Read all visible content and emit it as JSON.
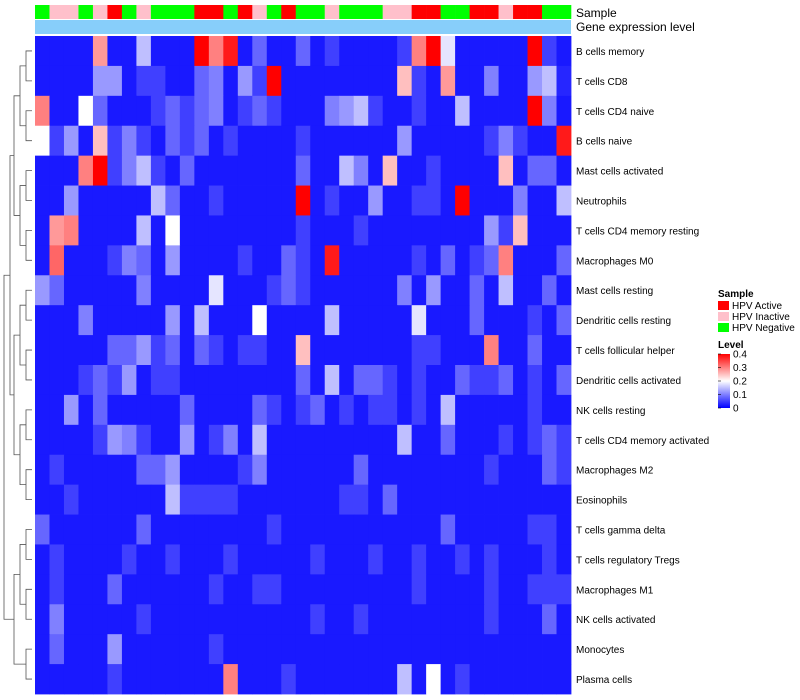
{
  "chart_data": {
    "type": "heatmap",
    "annotation_rows": [
      "Sample",
      "Gene expression level"
    ],
    "rows": [
      "B cells memory",
      "T cells CD8",
      "T cells CD4 naive",
      "B cells naive",
      "Mast cells activated",
      "Neutrophils",
      "T cells CD4 memory resting",
      "Macrophages M0",
      "Mast cells resting",
      "Dendritic cells resting",
      "T cells follicular helper",
      "Dendritic cells activated",
      "NK cells resting",
      "T cells CD4 memory activated",
      "Macrophages M2",
      "Eosinophils",
      "T cells gamma delta",
      "T cells regulatory  Tregs",
      "Macrophages M1",
      "NK cells activated",
      "Monocytes",
      "Plasma cells"
    ],
    "sample_groups": [
      "HPV Negative",
      "HPV Inactive",
      "HPV Inactive",
      "HPV Negative",
      "HPV Inactive",
      "HPV Active",
      "HPV Negative",
      "HPV Inactive",
      "HPV Negative",
      "HPV Negative",
      "HPV Negative",
      "HPV Active",
      "HPV Active",
      "HPV Negative",
      "HPV Active",
      "HPV Inactive",
      "HPV Negative",
      "HPV Active",
      "HPV Negative",
      "HPV Negative",
      "HPV Inactive",
      "HPV Negative",
      "HPV Negative",
      "HPV Negative",
      "HPV Inactive",
      "HPV Inactive",
      "HPV Active",
      "HPV Active",
      "HPV Negative",
      "HPV Negative",
      "HPV Active",
      "HPV Active",
      "HPV Inactive",
      "HPV Active",
      "HPV Active",
      "HPV Negative",
      "HPV Negative"
    ],
    "values": [
      [
        0.02,
        0.02,
        0.02,
        0.02,
        0.28,
        0.02,
        0.02,
        0.15,
        0.02,
        0.02,
        0.02,
        0.4,
        0.3,
        0.38,
        0.02,
        0.08,
        0.02,
        0.02,
        0.08,
        0.02,
        0.05,
        0.02,
        0.02,
        0.02,
        0.02,
        0.05,
        0.3,
        0.4,
        0.18,
        0.02,
        0.02,
        0.02,
        0.02,
        0.02,
        0.4,
        0.05,
        0.02
      ],
      [
        0.02,
        0.02,
        0.02,
        0.02,
        0.12,
        0.12,
        0.02,
        0.05,
        0.05,
        0.02,
        0.02,
        0.08,
        0.1,
        0.02,
        0.12,
        0.05,
        0.4,
        0.02,
        0.02,
        0.02,
        0.02,
        0.02,
        0.02,
        0.02,
        0.02,
        0.25,
        0.05,
        0.02,
        0.28,
        0.02,
        0.02,
        0.1,
        0.02,
        0.02,
        0.12,
        0.15,
        0.03
      ],
      [
        0.3,
        0.02,
        0.02,
        0.2,
        0.08,
        0.02,
        0.02,
        0.02,
        0.05,
        0.08,
        0.05,
        0.08,
        0.1,
        0.02,
        0.05,
        0.08,
        0.05,
        0.02,
        0.02,
        0.02,
        0.1,
        0.12,
        0.15,
        0.05,
        0.02,
        0.02,
        0.05,
        0.02,
        0.02,
        0.15,
        0.02,
        0.02,
        0.02,
        0.02,
        0.4,
        0.1,
        0.02
      ],
      [
        0.2,
        0.05,
        0.12,
        0.02,
        0.25,
        0.05,
        0.1,
        0.05,
        0.02,
        0.08,
        0.05,
        0.08,
        0.02,
        0.05,
        0.02,
        0.02,
        0.02,
        0.02,
        0.05,
        0.02,
        0.02,
        0.02,
        0.02,
        0.02,
        0.02,
        0.12,
        0.02,
        0.02,
        0.02,
        0.02,
        0.02,
        0.05,
        0.1,
        0.05,
        0.02,
        0.02,
        0.38
      ],
      [
        0.02,
        0.02,
        0.02,
        0.3,
        0.4,
        0.05,
        0.1,
        0.15,
        0.05,
        0.02,
        0.08,
        0.02,
        0.02,
        0.02,
        0.02,
        0.02,
        0.02,
        0.02,
        0.08,
        0.02,
        0.02,
        0.15,
        0.1,
        0.02,
        0.25,
        0.02,
        0.02,
        0.05,
        0.02,
        0.02,
        0.02,
        0.02,
        0.25,
        0.02,
        0.08,
        0.08,
        0.02
      ],
      [
        0.02,
        0.02,
        0.12,
        0.02,
        0.02,
        0.02,
        0.02,
        0.02,
        0.15,
        0.08,
        0.02,
        0.02,
        0.05,
        0.02,
        0.02,
        0.02,
        0.02,
        0.02,
        0.4,
        0.02,
        0.05,
        0.02,
        0.02,
        0.12,
        0.02,
        0.02,
        0.05,
        0.05,
        0.02,
        0.4,
        0.02,
        0.02,
        0.02,
        0.1,
        0.02,
        0.02,
        0.15
      ],
      [
        0.02,
        0.28,
        0.3,
        0.02,
        0.02,
        0.02,
        0.02,
        0.15,
        0.02,
        0.2,
        0.02,
        0.02,
        0.02,
        0.02,
        0.02,
        0.02,
        0.02,
        0.02,
        0.05,
        0.02,
        0.02,
        0.02,
        0.05,
        0.02,
        0.02,
        0.02,
        0.02,
        0.02,
        0.02,
        0.02,
        0.02,
        0.12,
        0.05,
        0.25,
        0.02,
        0.02,
        0.02
      ],
      [
        0.02,
        0.32,
        0.02,
        0.02,
        0.02,
        0.05,
        0.1,
        0.08,
        0.02,
        0.12,
        0.02,
        0.02,
        0.02,
        0.02,
        0.05,
        0.02,
        0.02,
        0.08,
        0.05,
        0.02,
        0.38,
        0.02,
        0.02,
        0.02,
        0.02,
        0.02,
        0.05,
        0.02,
        0.08,
        0.02,
        0.05,
        0.08,
        0.3,
        0.02,
        0.02,
        0.02,
        0.08
      ],
      [
        0.12,
        0.08,
        0.02,
        0.02,
        0.02,
        0.02,
        0.02,
        0.1,
        0.02,
        0.02,
        0.02,
        0.02,
        0.18,
        0.02,
        0.02,
        0.02,
        0.05,
        0.08,
        0.05,
        0.02,
        0.02,
        0.02,
        0.02,
        0.02,
        0.02,
        0.1,
        0.02,
        0.12,
        0.02,
        0.02,
        0.08,
        0.02,
        0.15,
        0.02,
        0.02,
        0.08,
        0.02
      ],
      [
        0.02,
        0.02,
        0.02,
        0.1,
        0.02,
        0.02,
        0.02,
        0.02,
        0.02,
        0.12,
        0.02,
        0.15,
        0.02,
        0.02,
        0.02,
        0.2,
        0.02,
        0.02,
        0.02,
        0.02,
        0.15,
        0.02,
        0.02,
        0.02,
        0.02,
        0.02,
        0.18,
        0.02,
        0.02,
        0.02,
        0.08,
        0.02,
        0.02,
        0.02,
        0.05,
        0.02,
        0.08
      ],
      [
        0.02,
        0.02,
        0.02,
        0.02,
        0.02,
        0.08,
        0.08,
        0.12,
        0.05,
        0.08,
        0.02,
        0.08,
        0.05,
        0.02,
        0.05,
        0.05,
        0.02,
        0.02,
        0.25,
        0.02,
        0.02,
        0.02,
        0.02,
        0.02,
        0.02,
        0.02,
        0.05,
        0.05,
        0.02,
        0.02,
        0.02,
        0.3,
        0.02,
        0.02,
        0.08,
        0.02,
        0.02
      ],
      [
        0.02,
        0.02,
        0.02,
        0.05,
        0.08,
        0.05,
        0.12,
        0.02,
        0.05,
        0.05,
        0.02,
        0.02,
        0.02,
        0.02,
        0.02,
        0.02,
        0.02,
        0.02,
        0.08,
        0.02,
        0.15,
        0.02,
        0.08,
        0.08,
        0.05,
        0.02,
        0.05,
        0.02,
        0.02,
        0.08,
        0.05,
        0.05,
        0.08,
        0.02,
        0.05,
        0.02,
        0.08
      ],
      [
        0.02,
        0.02,
        0.12,
        0.02,
        0.08,
        0.02,
        0.02,
        0.02,
        0.02,
        0.02,
        0.08,
        0.02,
        0.02,
        0.02,
        0.02,
        0.08,
        0.05,
        0.02,
        0.05,
        0.08,
        0.02,
        0.05,
        0.02,
        0.05,
        0.05,
        0.02,
        0.05,
        0.02,
        0.15,
        0.02,
        0.02,
        0.02,
        0.02,
        0.02,
        0.05,
        0.02,
        0.02
      ],
      [
        0.02,
        0.02,
        0.02,
        0.02,
        0.05,
        0.12,
        0.1,
        0.05,
        0.02,
        0.02,
        0.12,
        0.02,
        0.05,
        0.1,
        0.02,
        0.15,
        0.02,
        0.02,
        0.02,
        0.02,
        0.02,
        0.02,
        0.02,
        0.02,
        0.02,
        0.15,
        0.02,
        0.02,
        0.08,
        0.02,
        0.02,
        0.02,
        0.05,
        0.02,
        0.05,
        0.08,
        0.05
      ],
      [
        0.02,
        0.05,
        0.02,
        0.02,
        0.02,
        0.02,
        0.02,
        0.08,
        0.08,
        0.12,
        0.02,
        0.02,
        0.02,
        0.02,
        0.05,
        0.1,
        0.02,
        0.02,
        0.02,
        0.02,
        0.02,
        0.02,
        0.08,
        0.02,
        0.02,
        0.02,
        0.02,
        0.02,
        0.02,
        0.02,
        0.02,
        0.05,
        0.02,
        0.02,
        0.02,
        0.08,
        0.05
      ],
      [
        0.02,
        0.02,
        0.05,
        0.02,
        0.02,
        0.02,
        0.02,
        0.02,
        0.02,
        0.15,
        0.05,
        0.05,
        0.05,
        0.05,
        0.02,
        0.02,
        0.02,
        0.02,
        0.02,
        0.02,
        0.02,
        0.05,
        0.05,
        0.02,
        0.08,
        0.02,
        0.02,
        0.02,
        0.02,
        0.02,
        0.02,
        0.02,
        0.02,
        0.02,
        0.02,
        0.02,
        0.02
      ],
      [
        0.08,
        0.02,
        0.02,
        0.02,
        0.02,
        0.02,
        0.02,
        0.08,
        0.02,
        0.02,
        0.02,
        0.02,
        0.02,
        0.02,
        0.02,
        0.02,
        0.05,
        0.02,
        0.02,
        0.02,
        0.02,
        0.02,
        0.02,
        0.02,
        0.02,
        0.02,
        0.02,
        0.02,
        0.08,
        0.02,
        0.02,
        0.02,
        0.02,
        0.02,
        0.05,
        0.05,
        0.02
      ],
      [
        0.02,
        0.05,
        0.02,
        0.02,
        0.02,
        0.02,
        0.05,
        0.02,
        0.02,
        0.05,
        0.02,
        0.02,
        0.02,
        0.05,
        0.02,
        0.02,
        0.02,
        0.02,
        0.02,
        0.05,
        0.02,
        0.02,
        0.02,
        0.05,
        0.02,
        0.02,
        0.05,
        0.02,
        0.02,
        0.05,
        0.02,
        0.05,
        0.02,
        0.02,
        0.02,
        0.05,
        0.02
      ],
      [
        0.02,
        0.05,
        0.02,
        0.02,
        0.02,
        0.08,
        0.02,
        0.02,
        0.02,
        0.02,
        0.02,
        0.02,
        0.05,
        0.02,
        0.02,
        0.05,
        0.05,
        0.02,
        0.02,
        0.02,
        0.02,
        0.02,
        0.02,
        0.02,
        0.02,
        0.02,
        0.05,
        0.02,
        0.02,
        0.02,
        0.02,
        0.05,
        0.02,
        0.02,
        0.05,
        0.05,
        0.05
      ],
      [
        0.02,
        0.1,
        0.02,
        0.02,
        0.02,
        0.02,
        0.02,
        0.05,
        0.02,
        0.02,
        0.02,
        0.02,
        0.02,
        0.02,
        0.02,
        0.02,
        0.02,
        0.02,
        0.02,
        0.05,
        0.02,
        0.02,
        0.05,
        0.02,
        0.02,
        0.02,
        0.02,
        0.02,
        0.02,
        0.02,
        0.02,
        0.05,
        0.02,
        0.02,
        0.02,
        0.08,
        0.02
      ],
      [
        0.02,
        0.08,
        0.02,
        0.02,
        0.02,
        0.12,
        0.02,
        0.02,
        0.02,
        0.02,
        0.02,
        0.02,
        0.05,
        0.02,
        0.02,
        0.02,
        0.02,
        0.02,
        0.02,
        0.02,
        0.02,
        0.02,
        0.02,
        0.02,
        0.02,
        0.02,
        0.02,
        0.02,
        0.02,
        0.02,
        0.02,
        0.02,
        0.02,
        0.02,
        0.02,
        0.02,
        0.02
      ],
      [
        0.02,
        0.02,
        0.02,
        0.02,
        0.02,
        0.05,
        0.02,
        0.02,
        0.02,
        0.02,
        0.02,
        0.02,
        0.02,
        0.3,
        0.02,
        0.02,
        0.02,
        0.05,
        0.02,
        0.02,
        0.02,
        0.02,
        0.02,
        0.02,
        0.02,
        0.15,
        0.02,
        0.2,
        0.02,
        0.05,
        0.02,
        0.02,
        0.02,
        0.02,
        0.02,
        0.02,
        0.02
      ]
    ],
    "legend": {
      "sample_title": "Sample",
      "sample_entries": [
        {
          "label": "HPV Active",
          "color": "#ff0000"
        },
        {
          "label": "HPV Inactive",
          "color": "#ffc0cb"
        },
        {
          "label": "HPV Negative",
          "color": "#00ff00"
        }
      ],
      "level_title": "Level",
      "level_ticks": [
        "0.4",
        "0.3",
        "0.2",
        "0.1",
        "0"
      ],
      "level_range": [
        0,
        0.4
      ],
      "placement": "right"
    },
    "colors": {
      "low": "#0000ff",
      "mid": "#ffffff",
      "high": "#ff0000",
      "expression_bar": "#87cefa"
    }
  }
}
